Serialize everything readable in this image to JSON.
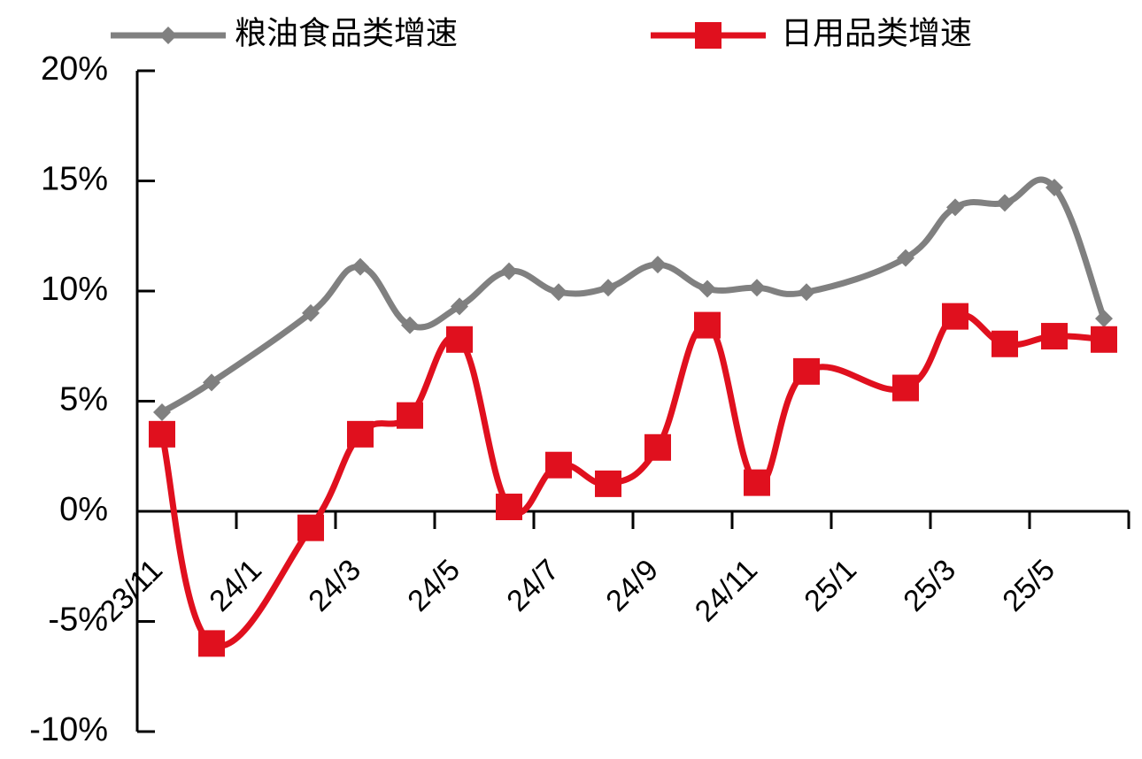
{
  "chart_data": {
    "type": "line",
    "categories": [
      "23/11",
      null,
      "24/1",
      null,
      "24/3",
      null,
      "24/5",
      null,
      "24/7",
      null,
      "24/9",
      null,
      "24/11",
      null,
      "25/1",
      null,
      "25/3",
      null,
      "25/5",
      null
    ],
    "series": [
      {
        "name": "粮油食品类增速",
        "color": "#808080",
        "marker": "diamond",
        "values": [
          4.5,
          5.85,
          null,
          9.0,
          11.1,
          8.45,
          9.3,
          10.9,
          9.95,
          10.15,
          11.2,
          10.1,
          10.15,
          9.95,
          null,
          11.5,
          13.8,
          14.0,
          14.7,
          8.75
        ]
      },
      {
        "name": "日用品类增速",
        "color": "#e0101e",
        "marker": "square",
        "values": [
          3.5,
          -6.0,
          null,
          -0.75,
          3.5,
          4.35,
          7.8,
          0.2,
          2.1,
          1.25,
          2.9,
          8.45,
          1.3,
          6.35,
          null,
          5.6,
          8.85,
          7.6,
          7.95,
          7.8
        ]
      }
    ],
    "ylim": [
      -10,
      20
    ],
    "yticks": [
      {
        "value": -10,
        "label": "-10%"
      },
      {
        "value": -5,
        "label": "-5%"
      },
      {
        "value": 0,
        "label": "0%"
      },
      {
        "value": 5,
        "label": "5%"
      },
      {
        "value": 10,
        "label": "10%"
      },
      {
        "value": 15,
        "label": "15%"
      },
      {
        "value": 20,
        "label": "20%"
      }
    ],
    "legend": "top"
  }
}
